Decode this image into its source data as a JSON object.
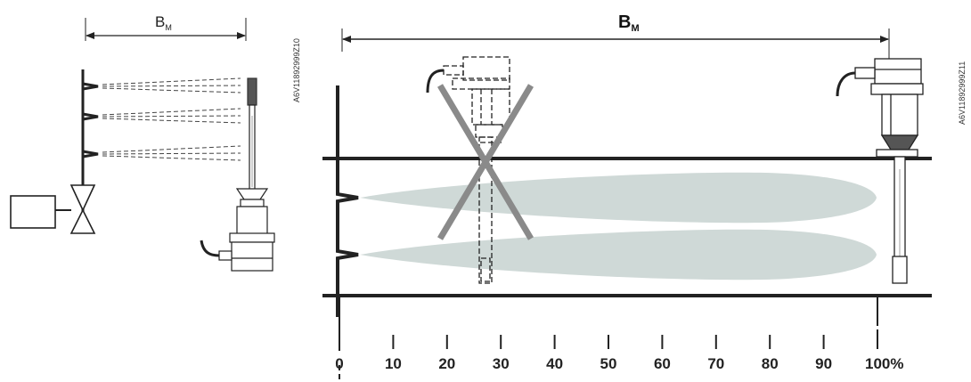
{
  "left_diagram": {
    "dimension": {
      "letter": "B",
      "subscript": "M"
    },
    "drawing_code": "A6V11892999Z10"
  },
  "right_diagram": {
    "dimension": {
      "letter": "B",
      "subscript": "M"
    },
    "drawing_code": "A6V11892999Z11",
    "scale_ticks": [
      "0",
      "10",
      "20",
      "30",
      "40",
      "50",
      "60",
      "70",
      "80",
      "90",
      "100%"
    ]
  },
  "colors": {
    "line": "#222222",
    "plume": "#cfd9d7",
    "cross": "#8a8a8a"
  }
}
